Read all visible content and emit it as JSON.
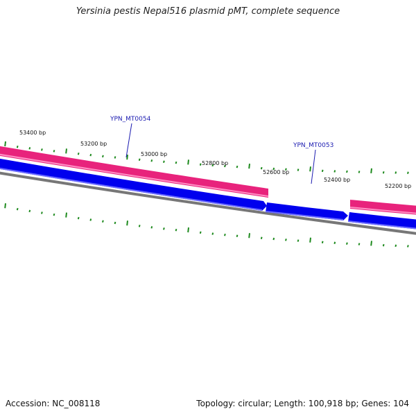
{
  "title": "Yersinia pestis Nepal516 plasmid pMT, complete sequence",
  "footer": {
    "accession": "Accession: NC_008118",
    "summary": "Topology: circular; Length: 100,918 bp; Genes: 104"
  },
  "colors": {
    "backbone": "#777777",
    "gene_forward": "#e8237c",
    "gene_reverse": "#0000f0",
    "tick": "#1e8a1e",
    "gene_label": "#1a1ab0"
  },
  "ruler": {
    "units": "bp",
    "labeled_positions": [
      "53400 bp",
      "53200 bp",
      "53000 bp",
      "52800 bp",
      "52600 bp",
      "52400 bp",
      "52200 bp"
    ]
  },
  "genes": {
    "forward": [
      {
        "id": "forward-gene-1",
        "segment": "left"
      },
      {
        "id": "forward-gene-2",
        "segment": "right"
      }
    ],
    "reverse": [
      {
        "id": "reverse-gene-1",
        "segment": "left"
      },
      {
        "id": "reverse-gene-2",
        "segment": "middle"
      },
      {
        "id": "reverse-gene-3",
        "segment": "right"
      }
    ],
    "labels": [
      {
        "name": "YPN_MT0054"
      },
      {
        "name": "YPN_MT0053"
      }
    ]
  }
}
